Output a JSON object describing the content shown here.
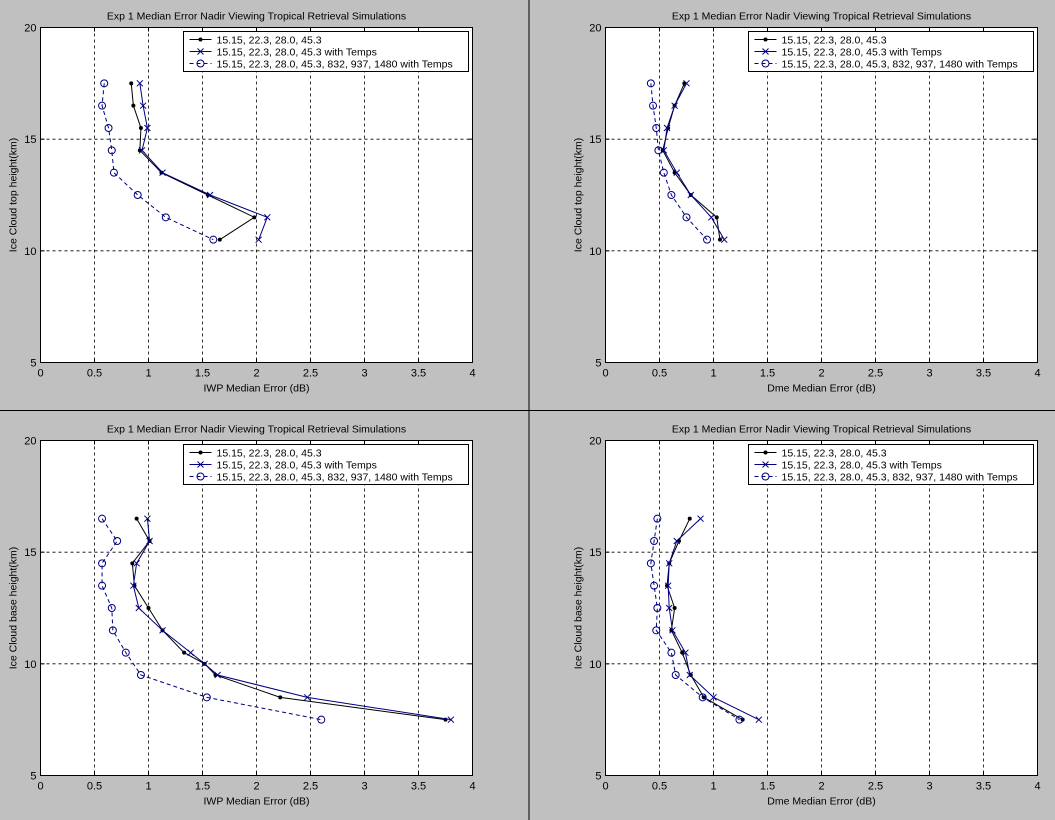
{
  "colors": {
    "background": "#c0c0c0",
    "axes_face": "#ffffff",
    "grid": "#000000",
    "divider": "#000000"
  },
  "chart_data": [
    {
      "type": "line",
      "title": "Exp 1 Median Error Nadir Viewing Tropical Retrieval Simulations",
      "xlabel": "IWP Median Error (dB)",
      "ylabel": "Ice Cloud top height(km)",
      "xlim": [
        0,
        4
      ],
      "ylim": [
        5,
        20
      ],
      "xticks": [
        0,
        0.5,
        1,
        1.5,
        2,
        2.5,
        3,
        3.5,
        4
      ],
      "xtick_labels": [
        "0",
        "0.5",
        "1",
        "1.5",
        "2",
        "2.5",
        "3",
        "3.5",
        "4"
      ],
      "yticks": [
        5,
        10,
        15,
        20
      ],
      "ytick_labels": [
        "5",
        "10",
        "15",
        "20"
      ],
      "grid": true,
      "legend_position": "top-right",
      "series": [
        {
          "name": "15.15, 22.3, 28.0, 45.3",
          "color": "#000000",
          "linestyle": "solid",
          "marker": "dot",
          "x": [
            0.84,
            0.86,
            0.93,
            0.92,
            1.12,
            1.55,
            1.98,
            1.66
          ],
          "y": [
            17.5,
            16.5,
            15.5,
            14.5,
            13.5,
            12.5,
            11.5,
            10.5
          ]
        },
        {
          "name": "15.15, 22.3, 28.0, 45.3 with Temps",
          "color": "#000080",
          "linestyle": "solid",
          "marker": "x",
          "x": [
            0.92,
            0.95,
            0.99,
            0.94,
            1.13,
            1.57,
            2.1,
            2.02
          ],
          "y": [
            17.5,
            16.5,
            15.5,
            14.5,
            13.5,
            12.5,
            11.5,
            10.5
          ]
        },
        {
          "name": "15.15, 22.3, 28.0, 45.3, 832, 937, 1480 with Temps",
          "color": "#000080",
          "linestyle": "dashed",
          "marker": "circle",
          "x": [
            0.59,
            0.57,
            0.63,
            0.66,
            0.68,
            0.9,
            1.16,
            1.6
          ],
          "y": [
            17.5,
            16.5,
            15.5,
            14.5,
            13.5,
            12.5,
            11.5,
            10.5
          ]
        }
      ]
    },
    {
      "type": "line",
      "title": "Exp 1 Median Error Nadir Viewing Tropical Retrieval Simulations",
      "xlabel": "Dme Median Error (dB)",
      "ylabel": "Ice Cloud top height(km)",
      "xlim": [
        0,
        4
      ],
      "ylim": [
        5,
        20
      ],
      "xticks": [
        0,
        0.5,
        1,
        1.5,
        2,
        2.5,
        3,
        3.5,
        4
      ],
      "xtick_labels": [
        "0",
        "0.5",
        "1",
        "1.5",
        "2",
        "2.5",
        "3",
        "3.5",
        "4"
      ],
      "yticks": [
        5,
        10,
        15,
        20
      ],
      "ytick_labels": [
        "5",
        "10",
        "15",
        "20"
      ],
      "grid": true,
      "legend_position": "top-right",
      "series": [
        {
          "name": "15.15, 22.3, 28.0, 45.3",
          "color": "#000000",
          "linestyle": "solid",
          "marker": "dot",
          "x": [
            0.73,
            0.64,
            0.58,
            0.53,
            0.64,
            0.79,
            1.03,
            1.06
          ],
          "y": [
            17.5,
            16.5,
            15.5,
            14.5,
            13.5,
            12.5,
            11.5,
            10.5
          ]
        },
        {
          "name": "15.15, 22.3, 28.0, 45.3 with Temps",
          "color": "#000080",
          "linestyle": "solid",
          "marker": "x",
          "x": [
            0.75,
            0.64,
            0.57,
            0.54,
            0.66,
            0.79,
            0.98,
            1.1
          ],
          "y": [
            17.5,
            16.5,
            15.5,
            14.5,
            13.5,
            12.5,
            11.5,
            10.5
          ]
        },
        {
          "name": "15.15, 22.3, 28.0, 45.3, 832, 937, 1480 with Temps",
          "color": "#000080",
          "linestyle": "dashed",
          "marker": "circle",
          "x": [
            0.42,
            0.44,
            0.47,
            0.49,
            0.54,
            0.61,
            0.75,
            0.94
          ],
          "y": [
            17.5,
            16.5,
            15.5,
            14.5,
            13.5,
            12.5,
            11.5,
            10.5
          ]
        }
      ]
    },
    {
      "type": "line",
      "title": "Exp 1 Median Error Nadir Viewing Tropical Retrieval Simulations",
      "xlabel": "IWP Median Error (dB)",
      "ylabel": "Ice Cloud base height(km)",
      "xlim": [
        0,
        4
      ],
      "ylim": [
        5,
        20
      ],
      "xticks": [
        0,
        0.5,
        1,
        1.5,
        2,
        2.5,
        3,
        3.5,
        4
      ],
      "xtick_labels": [
        "0",
        "0.5",
        "1",
        "1.5",
        "2",
        "2.5",
        "3",
        "3.5",
        "4"
      ],
      "yticks": [
        5,
        10,
        15,
        20
      ],
      "ytick_labels": [
        "5",
        "10",
        "15",
        "20"
      ],
      "grid": true,
      "legend_position": "top-right",
      "series": [
        {
          "name": "15.15, 22.3, 28.0, 45.3",
          "color": "#000000",
          "linestyle": "solid",
          "marker": "dot",
          "x": [
            0.89,
            1.01,
            0.85,
            0.87,
            1.0,
            1.13,
            1.33,
            1.52,
            1.62,
            2.22,
            3.75
          ],
          "y": [
            16.5,
            15.5,
            14.5,
            13.5,
            12.5,
            11.5,
            10.5,
            10.0,
            9.5,
            8.5,
            7.5
          ]
        },
        {
          "name": "15.15, 22.3, 28.0, 45.3 with Temps",
          "color": "#000080",
          "linestyle": "solid",
          "marker": "x",
          "x": [
            0.99,
            1.01,
            0.89,
            0.86,
            0.91,
            1.13,
            1.39,
            1.52,
            1.64,
            2.47,
            3.8
          ],
          "y": [
            16.5,
            15.5,
            14.5,
            13.5,
            12.5,
            11.5,
            10.5,
            10.0,
            9.5,
            8.5,
            7.5
          ]
        },
        {
          "name": "15.15, 22.3, 28.0, 45.3, 832, 937, 1480 with Temps",
          "color": "#000080",
          "linestyle": "dashed",
          "marker": "circle",
          "x": [
            0.57,
            0.71,
            0.57,
            0.57,
            0.66,
            0.67,
            0.79,
            0.93,
            1.54,
            2.6
          ],
          "y": [
            16.5,
            15.5,
            14.5,
            13.5,
            12.5,
            11.5,
            10.5,
            9.5,
            8.5,
            7.5
          ]
        }
      ]
    },
    {
      "type": "line",
      "title": "Exp 1 Median Error Nadir Viewing Tropical Retrieval Simulations",
      "xlabel": "Dme Median Error (dB)",
      "ylabel": "Ice Cloud base height(km)",
      "xlim": [
        0,
        4
      ],
      "ylim": [
        5,
        20
      ],
      "xticks": [
        0,
        0.5,
        1,
        1.5,
        2,
        2.5,
        3,
        3.5,
        4
      ],
      "xtick_labels": [
        "0",
        "0.5",
        "1",
        "1.5",
        "2",
        "2.5",
        "3",
        "3.5",
        "4"
      ],
      "yticks": [
        5,
        10,
        15,
        20
      ],
      "ytick_labels": [
        "5",
        "10",
        "15",
        "20"
      ],
      "grid": true,
      "legend_position": "top-right",
      "series": [
        {
          "name": "15.15, 22.3, 28.0, 45.3",
          "color": "#000000",
          "linestyle": "solid",
          "marker": "dot",
          "x": [
            0.78,
            0.68,
            0.59,
            0.57,
            0.64,
            0.61,
            0.71,
            0.79,
            0.91,
            1.27
          ],
          "y": [
            16.5,
            15.5,
            14.5,
            13.5,
            12.5,
            11.5,
            10.5,
            9.5,
            8.5,
            7.5
          ]
        },
        {
          "name": "15.15, 22.3, 28.0, 45.3 with Temps",
          "color": "#000080",
          "linestyle": "solid",
          "marker": "x",
          "x": [
            0.88,
            0.66,
            0.59,
            0.58,
            0.59,
            0.62,
            0.74,
            0.78,
            1.0,
            1.42
          ],
          "y": [
            16.5,
            15.5,
            14.5,
            13.5,
            12.5,
            11.5,
            10.5,
            9.5,
            8.5,
            7.5
          ]
        },
        {
          "name": "15.15, 22.3, 28.0, 45.3, 832, 937, 1480 with Temps",
          "color": "#000080",
          "linestyle": "dashed",
          "marker": "circle",
          "x": [
            0.48,
            0.45,
            0.42,
            0.45,
            0.48,
            0.47,
            0.61,
            0.65,
            0.9,
            1.24
          ],
          "y": [
            16.5,
            15.5,
            14.5,
            13.5,
            12.5,
            11.5,
            10.5,
            9.5,
            8.5,
            7.5
          ]
        }
      ]
    }
  ]
}
